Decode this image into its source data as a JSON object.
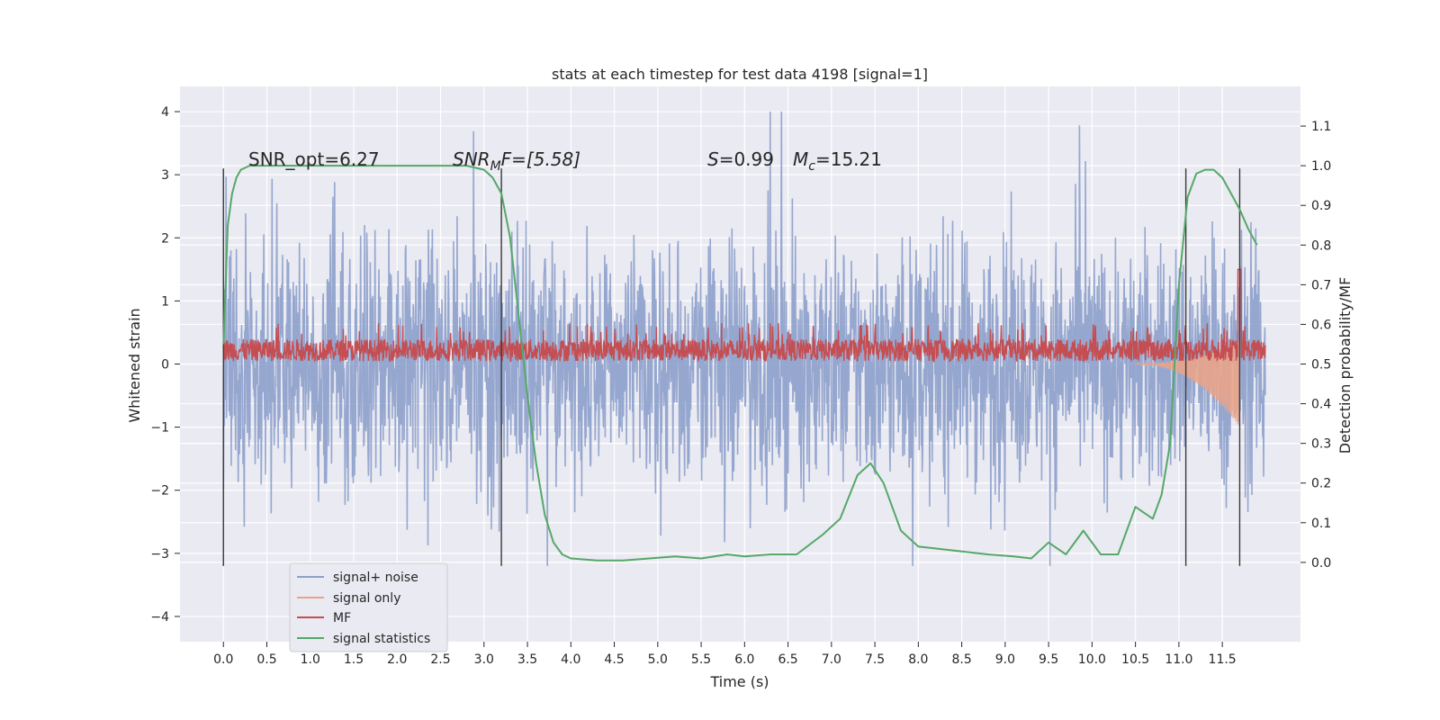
{
  "chart_data": {
    "type": "line",
    "title": "stats at each timestep for test data 4198 [signal=1]",
    "xlabel": "Time (s)",
    "ylabel_left": "Whitened strain",
    "ylabel_right": "Detection probability/MF",
    "xlim": [
      -0.5,
      12.4
    ],
    "ylim_left": [
      -4.4,
      4.4
    ],
    "ylim_right": [
      -0.2,
      1.2
    ],
    "x_ticks": [
      "0.0",
      "0.5",
      "1.0",
      "1.5",
      "2.0",
      "2.5",
      "3.0",
      "3.5",
      "4.0",
      "4.5",
      "5.0",
      "5.5",
      "6.0",
      "6.5",
      "7.0",
      "7.5",
      "8.0",
      "8.5",
      "9.0",
      "9.5",
      "10.0",
      "10.5",
      "11.0",
      "11.5"
    ],
    "y_ticks_left": [
      "−4",
      "−3",
      "−2",
      "−1",
      "0",
      "1",
      "2",
      "3",
      "4"
    ],
    "y_ticks_right": [
      "0.0",
      "0.1",
      "0.2",
      "0.3",
      "0.4",
      "0.5",
      "0.6",
      "0.7",
      "0.8",
      "0.9",
      "1.0",
      "1.1"
    ],
    "grid": true,
    "legend_position": "lower-left",
    "annotations": {
      "snr_opt": "SNR_opt=6.27",
      "snr_mf_base": "SNR",
      "snr_mf_sub": "M",
      "snr_mf_rest": "F=[5.58]",
      "s_sym": "S",
      "s_rest": "=0.99",
      "mc_sym": "M",
      "mc_sub": "c",
      "mc_rest": "=15.21"
    },
    "vertical_markers": [
      0.0,
      3.2,
      11.08,
      11.7
    ],
    "series": [
      {
        "name": "signal+ noise",
        "color": "#8da0cb",
        "description_amplitude": [
          -3.2,
          4.0
        ],
        "x_range": [
          0.0,
          12.0
        ]
      },
      {
        "name": "signal only",
        "color": "#e8a48a",
        "x_range": [
          10.5,
          11.7
        ],
        "envelope_end": [
          -1.0,
          1.5
        ]
      },
      {
        "name": "MF",
        "color": "#c44e52",
        "x_range": [
          0.0,
          12.0
        ],
        "band": [
          0.0,
          0.6
        ]
      },
      {
        "name": "signal statistics",
        "color": "#55a868",
        "x": [
          0.0,
          0.05,
          0.1,
          0.15,
          0.2,
          0.3,
          0.5,
          1.0,
          1.5,
          2.0,
          2.5,
          2.8,
          3.0,
          3.1,
          3.2,
          3.3,
          3.4,
          3.5,
          3.6,
          3.7,
          3.8,
          3.9,
          4.0,
          4.3,
          4.6,
          4.9,
          5.2,
          5.5,
          5.8,
          6.0,
          6.3,
          6.6,
          6.9,
          7.1,
          7.3,
          7.45,
          7.6,
          7.8,
          8.0,
          8.4,
          8.8,
          9.1,
          9.3,
          9.5,
          9.7,
          9.9,
          10.1,
          10.3,
          10.5,
          10.7,
          10.8,
          10.9,
          11.0,
          11.1,
          11.2,
          11.3,
          11.4,
          11.5,
          11.6,
          11.7,
          11.8,
          11.9
        ],
        "y": [
          0.55,
          0.85,
          0.93,
          0.97,
          0.99,
          1.0,
          1.0,
          1.0,
          1.0,
          1.0,
          1.0,
          1.0,
          0.99,
          0.97,
          0.93,
          0.82,
          0.62,
          0.42,
          0.25,
          0.12,
          0.05,
          0.02,
          0.01,
          0.005,
          0.005,
          0.01,
          0.015,
          0.01,
          0.02,
          0.015,
          0.02,
          0.02,
          0.07,
          0.11,
          0.22,
          0.25,
          0.2,
          0.08,
          0.04,
          0.03,
          0.02,
          0.015,
          0.01,
          0.05,
          0.02,
          0.08,
          0.02,
          0.02,
          0.14,
          0.11,
          0.17,
          0.3,
          0.7,
          0.92,
          0.98,
          0.99,
          0.99,
          0.97,
          0.93,
          0.89,
          0.84,
          0.8
        ]
      }
    ]
  }
}
